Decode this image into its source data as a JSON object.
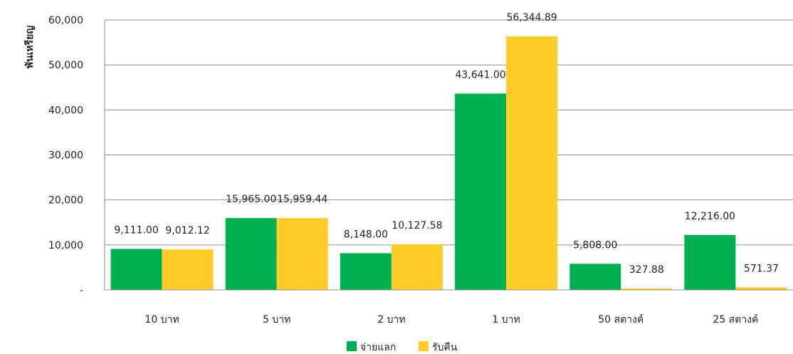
{
  "chart_data": {
    "type": "bar",
    "title": "",
    "xlabel": "",
    "ylabel": "พันเหรียญ",
    "ylim": [
      0,
      60000
    ],
    "yticks": [
      0,
      10000,
      20000,
      30000,
      40000,
      50000,
      60000
    ],
    "ytick_labels": [
      "-",
      "10,000",
      "20,000",
      "30,000",
      "40,000",
      "50,000",
      "60,000"
    ],
    "grid": true,
    "legend_position": "bottom",
    "categories": [
      "10 บาท",
      "5 บาท",
      "2 บาท",
      "1 บาท",
      "50 สตางค์",
      "25 สตางค์"
    ],
    "series": [
      {
        "name": "จ่ายแลก",
        "color": "#00b050",
        "values": [
          9111.0,
          15965.0,
          8148.0,
          43641.0,
          5808.0,
          12216.0
        ],
        "labels": [
          "9,111.00",
          "15,965.00",
          "8,148.00",
          "43,641.00",
          "5,808.00",
          "12,216.00"
        ]
      },
      {
        "name": "รับคืน",
        "color": "#ffcc29",
        "values": [
          9012.12,
          15959.44,
          10127.58,
          56344.89,
          327.88,
          571.37
        ],
        "labels": [
          "9,012.12",
          "15,959.44",
          "10,127.58",
          "56,344.89",
          "327.88",
          "571.37"
        ]
      }
    ]
  }
}
